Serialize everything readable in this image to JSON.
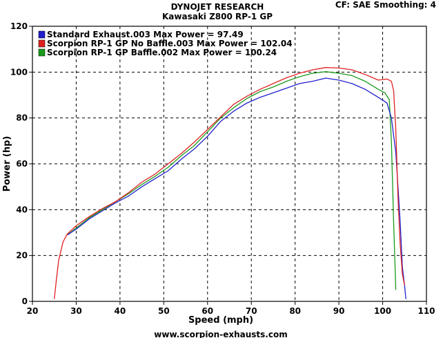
{
  "header": {
    "title": "DYNOJET RESEARCH",
    "subtitle": "Kawasaki Z800 RP-1 GP",
    "settings": "CF: SAE  Smoothing: 4"
  },
  "footer": {
    "url": "www.scorpion-exhausts.com"
  },
  "chart_data": {
    "type": "line",
    "title": "DYNOJET RESEARCH",
    "subtitle": "Kawasaki Z800 RP-1 GP",
    "xlabel": "Speed (mph)",
    "ylabel": "Power (hp)",
    "xlim": [
      20,
      110
    ],
    "ylim": [
      0,
      120
    ],
    "xticks": [
      20,
      30,
      40,
      50,
      60,
      70,
      80,
      90,
      100,
      110
    ],
    "yticks": [
      0,
      20,
      40,
      60,
      80,
      100,
      120
    ],
    "grid": true,
    "legend": "top-left",
    "series": [
      {
        "name": "Standard Exhaust.003 Max Power = 97.49",
        "color": "#1f1fcc",
        "x": [
          28,
          30,
          33,
          36,
          39,
          42,
          45,
          48,
          51,
          54,
          57,
          60,
          63,
          66,
          69,
          72,
          75,
          78,
          81,
          84,
          87,
          90,
          93,
          96,
          99,
          101,
          102,
          103,
          104,
          104.5,
          105,
          105.3
        ],
        "y": [
          29,
          31.5,
          36,
          39.5,
          43,
          46,
          50,
          53.5,
          57,
          62,
          66.5,
          72,
          78.5,
          83,
          86.5,
          89,
          91,
          93,
          95,
          96,
          97.4,
          96.5,
          95,
          92.5,
          89,
          86.5,
          80,
          65,
          35,
          15,
          7,
          1
        ]
      },
      {
        "name": "Scorpion RP-1 GP No Baffle.003 Max Power = 102.04",
        "color": "#e02020",
        "x": [
          25,
          25.5,
          26,
          27,
          28,
          30,
          33,
          36,
          39,
          42,
          45,
          48,
          51,
          54,
          57,
          60,
          63,
          66,
          69,
          72,
          75,
          78,
          81,
          84,
          87,
          90,
          93,
          96,
          99,
          101,
          102,
          102.5,
          103,
          103.5,
          104,
          104.5,
          105
        ],
        "y": [
          1,
          10,
          18,
          26,
          29.5,
          33,
          37,
          40.5,
          43.5,
          47.5,
          52,
          55.5,
          60,
          64.5,
          69.5,
          75,
          80.5,
          86,
          89.5,
          92.5,
          95,
          97.5,
          99.5,
          101,
          102,
          101.8,
          101,
          99,
          96.5,
          97,
          96,
          92,
          75,
          45,
          25,
          12,
          7
        ]
      },
      {
        "name": "Scorpion RP-1 GP Baffle.002 Max Power = 100.24",
        "color": "#1a9a1a",
        "x": [
          28,
          30,
          33,
          36,
          39,
          42,
          45,
          48,
          51,
          54,
          57,
          60,
          63,
          66,
          69,
          72,
          75,
          78,
          81,
          84,
          87,
          90,
          93,
          96,
          99,
          100.5,
          101.5,
          102,
          102.5,
          103
        ],
        "y": [
          29,
          32,
          36.5,
          40,
          43.5,
          47,
          51,
          54.5,
          58.5,
          63.5,
          68,
          74,
          80,
          84.5,
          88.5,
          91.5,
          93.5,
          96,
          98,
          99.5,
          100.2,
          99.5,
          98.5,
          96,
          92.5,
          91,
          88,
          70,
          35,
          5
        ]
      }
    ]
  }
}
